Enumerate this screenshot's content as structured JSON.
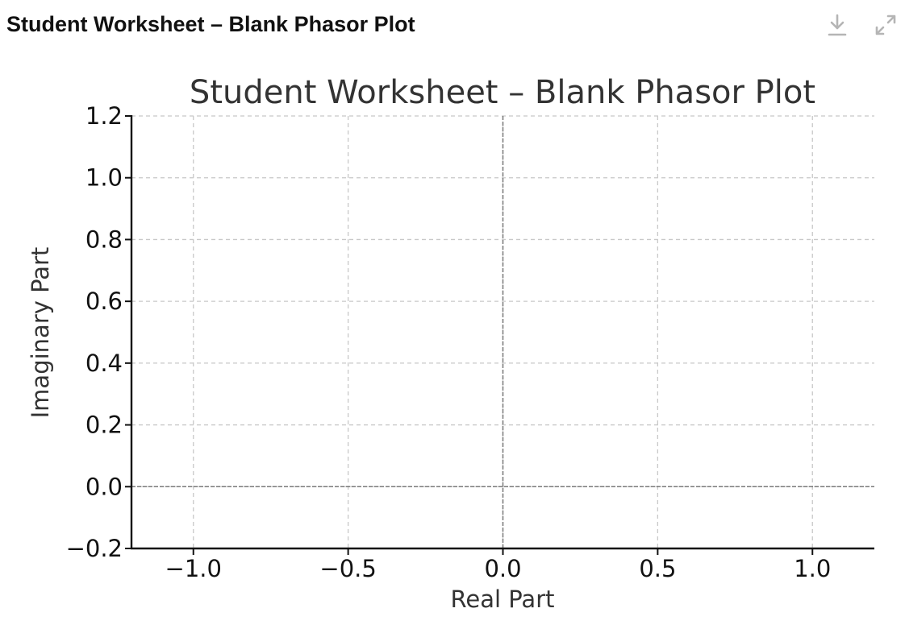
{
  "header": {
    "title": "Student Worksheet – Blank Phasor Plot",
    "download_icon": "download-icon",
    "expand_icon": "expand-icon"
  },
  "chart_data": {
    "type": "scatter",
    "title": "Student Worksheet – Blank Phasor Plot",
    "xlabel": "Real Part",
    "ylabel": "Imaginary Part",
    "xlim": [
      -1.2,
      1.2
    ],
    "ylim": [
      -0.2,
      1.2
    ],
    "x_ticks": [
      -1.0,
      -0.5,
      0.0,
      0.5,
      1.0
    ],
    "x_tick_labels": [
      "−1.0",
      "−0.5",
      "0.0",
      "0.5",
      "1.0"
    ],
    "y_ticks": [
      -0.2,
      0.0,
      0.2,
      0.4,
      0.6,
      0.8,
      1.0,
      1.2
    ],
    "y_tick_labels": [
      "−0.2",
      "0.0",
      "0.2",
      "0.4",
      "0.6",
      "0.8",
      "1.0",
      "1.2"
    ],
    "grid": true,
    "reference_lines": {
      "x": 0.0,
      "y": 0.0
    },
    "series": [],
    "colors": {
      "text": "#333333",
      "axis": "#111111",
      "grid": "#c8c8c8",
      "reference": "#7a7a7a",
      "icon": "#b5b5b5"
    }
  }
}
